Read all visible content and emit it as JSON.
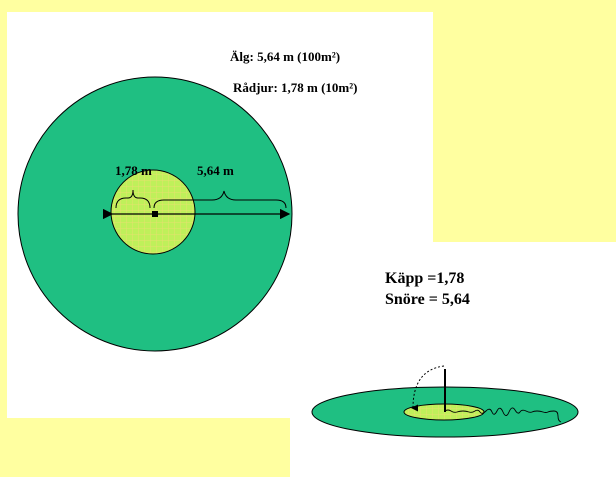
{
  "legend": {
    "moose": "Älg: 5,64 m (100m²)",
    "roe_deer": "Rådjur: 1,78 m (10m²)"
  },
  "radii": {
    "small_label": "1,78 m",
    "large_label": "5,64 m"
  },
  "tools": {
    "stick": "Käpp =1,78",
    "string": "Snöre = 5,64"
  },
  "colors": {
    "background": "#ffffa0",
    "panel": "#ffffff",
    "large_circle": "#1fbf82",
    "small_circle": "#bff05a",
    "grid": "#e6e06e",
    "outline": "#000000"
  }
}
